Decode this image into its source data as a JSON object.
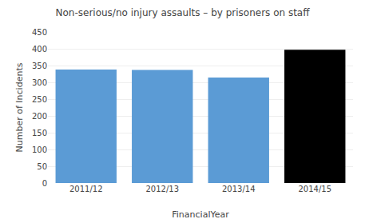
{
  "chart_data": {
    "type": "bar",
    "title": "Non-serious/no injury assaults – by prisoners on staff",
    "categories": [
      "2011/12",
      "2012/13",
      "2013/14",
      "2014/15"
    ],
    "values": [
      338,
      337,
      314,
      397
    ],
    "colors": [
      "#5b9bd5",
      "#5b9bd5",
      "#5b9bd5",
      "#000000"
    ],
    "xlabel": "FinancialYear",
    "ylabel": "Number of Incidents",
    "ylim": [
      0,
      450
    ],
    "yticks": [
      0,
      50,
      100,
      150,
      200,
      250,
      300,
      350,
      400,
      450
    ],
    "grid": true
  }
}
